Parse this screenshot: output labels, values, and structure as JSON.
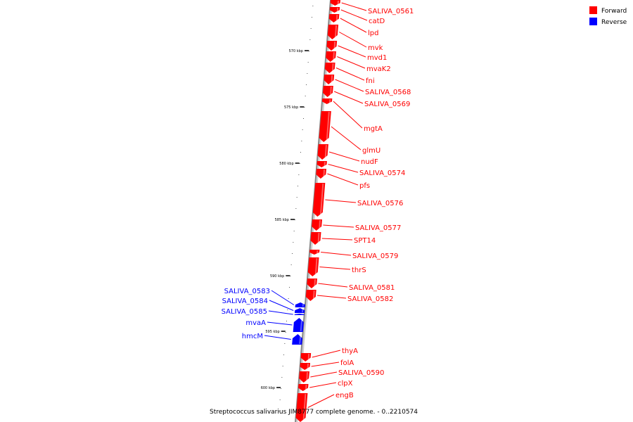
{
  "caption": "Streptococcus salivarius JIM8777 complete genome. - 0..2210574",
  "legend": [
    {
      "label": "Forward",
      "color": "#ff0000"
    },
    {
      "label": "Reverse",
      "color": "#0000ff"
    }
  ],
  "colors": {
    "forward": "#ff0000",
    "reverse": "#0000ff",
    "axis": "#888888"
  },
  "ticks": [
    {
      "label": "570 kbp"
    },
    {
      "label": "575 kbp"
    },
    {
      "label": "580 kbp"
    },
    {
      "label": "585 kbp"
    },
    {
      "label": "590 kbp"
    },
    {
      "label": "595 kbp"
    },
    {
      "label": "600 kbp"
    }
  ],
  "genes_forward": [
    {
      "name": "SALIVA_0561"
    },
    {
      "name": "catD"
    },
    {
      "name": "lpd"
    },
    {
      "name": "mvk"
    },
    {
      "name": "mvd1"
    },
    {
      "name": "mvaK2"
    },
    {
      "name": "fni"
    },
    {
      "name": "SALIVA_0568"
    },
    {
      "name": "SALIVA_0569"
    },
    {
      "name": "mgtA"
    },
    {
      "name": "glmU"
    },
    {
      "name": "nudF"
    },
    {
      "name": "SALIVA_0574"
    },
    {
      "name": "pfs"
    },
    {
      "name": "SALIVA_0576"
    },
    {
      "name": "SALIVA_0577"
    },
    {
      "name": "SPT14"
    },
    {
      "name": "SALIVA_0579"
    },
    {
      "name": "thrS"
    },
    {
      "name": "SALIVA_0581"
    },
    {
      "name": "SALIVA_0582"
    },
    {
      "name": "thyA"
    },
    {
      "name": "folA"
    },
    {
      "name": "SALIVA_0590"
    },
    {
      "name": "clpX"
    },
    {
      "name": "engB"
    }
  ],
  "genes_reverse": [
    {
      "name": "SALIVA_0583"
    },
    {
      "name": "SALIVA_0584"
    },
    {
      "name": "SALIVA_0585"
    },
    {
      "name": "mvaA"
    },
    {
      "name": "hmcM"
    }
  ]
}
